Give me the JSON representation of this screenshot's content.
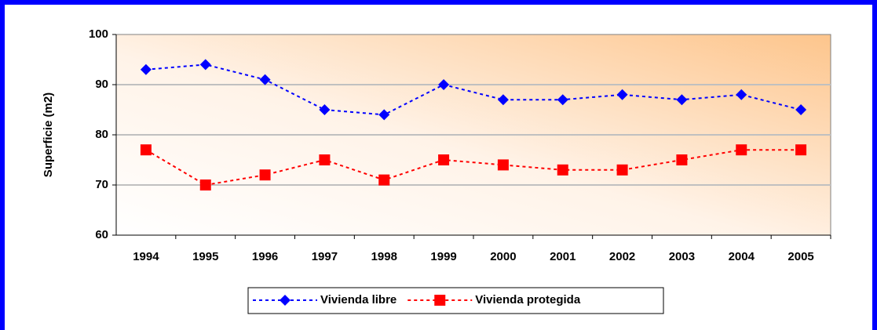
{
  "chart_data": {
    "type": "line",
    "categories": [
      "1994",
      "1995",
      "1996",
      "1997",
      "1998",
      "1999",
      "2000",
      "2001",
      "2002",
      "2003",
      "2004",
      "2005"
    ],
    "y_label": "Superficie (m2)",
    "series": [
      {
        "name": "Vivienda libre",
        "color": "#0000ff",
        "marker": "diamond",
        "values": [
          93,
          94,
          91,
          85,
          84,
          90,
          87,
          87,
          88,
          87,
          88,
          85
        ]
      },
      {
        "name": "Vivienda protegida",
        "color": "#ff0000",
        "marker": "square",
        "values": [
          77,
          70,
          72,
          75,
          71,
          75,
          74,
          73,
          73,
          75,
          77,
          77
        ]
      }
    ],
    "ylim": [
      60,
      100
    ],
    "yticks": [
      60,
      70,
      80,
      90,
      100
    ],
    "grid": true
  }
}
